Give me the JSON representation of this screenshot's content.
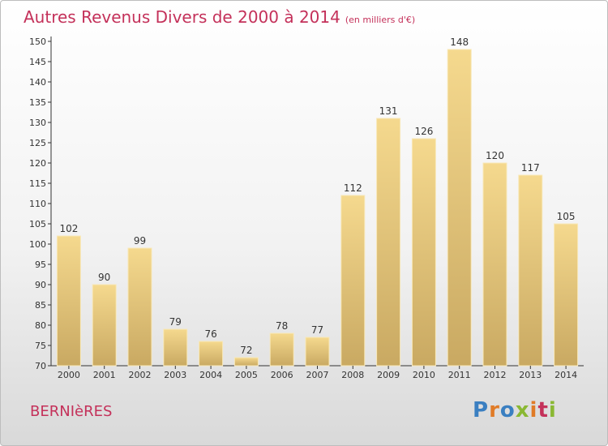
{
  "header": {
    "title": "Autres Revenus Divers de 2000 à 2014",
    "subtitle": "(en milliers d'€)"
  },
  "footer": {
    "place": "BERNIèRES",
    "logo_letters": [
      "P",
      "r",
      "o",
      "x",
      "i",
      "t",
      "i"
    ],
    "logo_colors": [
      "#3a7fc1",
      "#e07b27",
      "#3a7fc1",
      "#8ab833",
      "#e07b27",
      "#c4315a",
      "#8ab833"
    ]
  },
  "colors": {
    "accent": "#c4315a",
    "bar_light": "#f5d98e",
    "bar_dark": "#c9a962"
  },
  "chart_data": {
    "type": "bar",
    "title": "Autres Revenus Divers de 2000 à 2014",
    "subtitle": "(en milliers d'€)",
    "categories": [
      "2000",
      "2001",
      "2002",
      "2003",
      "2004",
      "2005",
      "2006",
      "2007",
      "2008",
      "2009",
      "2010",
      "2011",
      "2012",
      "2013",
      "2014"
    ],
    "values": [
      102,
      90,
      99,
      79,
      76,
      72,
      78,
      77,
      112,
      131,
      126,
      148,
      120,
      117,
      105
    ],
    "ylim": [
      70,
      150
    ],
    "yticks": [
      70,
      75,
      80,
      85,
      90,
      95,
      100,
      105,
      110,
      115,
      120,
      125,
      130,
      135,
      140,
      145,
      150
    ],
    "grid": false,
    "legend": "none"
  }
}
